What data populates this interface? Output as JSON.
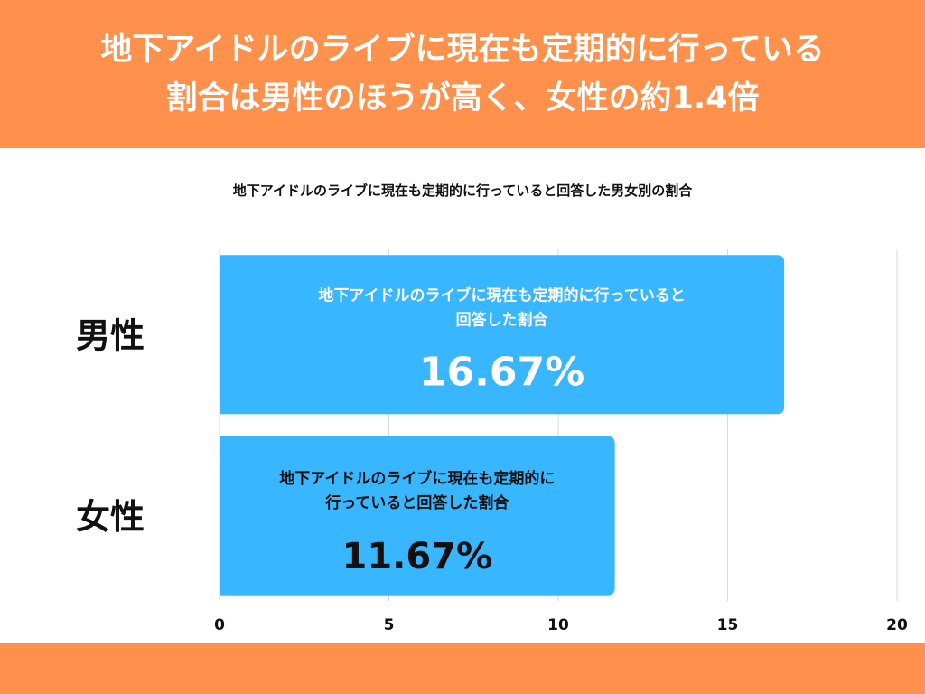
{
  "header": {
    "line1": "地下アイドルのライブに現在も定期的に行っている",
    "line2": "割合は男性のほうが高く、女性の約1.4倍"
  },
  "colors": {
    "banner": "#ff914d",
    "bar": "#38b6ff",
    "grid": "#d9d9d9"
  },
  "chart_data": {
    "type": "bar",
    "orientation": "horizontal",
    "title": "地下アイドルのライブに現在も定期的に行っていると回答した男女別の割合",
    "categories": [
      "男性",
      "女性"
    ],
    "series": [
      {
        "values": [
          16.67,
          11.67
        ],
        "data_labels": [
          "16.67%",
          "11.67%"
        ],
        "bar_captions": [
          [
            "地下アイドルのライブに現在も定期的に行っていると",
            "回答した割合"
          ],
          [
            "地下アイドルのライブに現在も定期的に",
            "行っていると回答した割合"
          ]
        ]
      }
    ],
    "xlim": [
      0,
      20
    ],
    "xticks": [
      0,
      5,
      10,
      15,
      20
    ],
    "grid": true,
    "legend": "none"
  }
}
